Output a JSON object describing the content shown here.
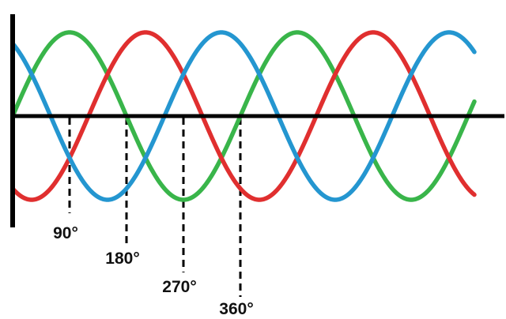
{
  "chart_data": {
    "type": "line",
    "title": "",
    "xlabel": "",
    "ylabel": "",
    "xunit": "degrees",
    "xlim": [
      -30,
      780
    ],
    "ylim": [
      -1,
      1
    ],
    "grid": false,
    "legend": "none",
    "x_tick_labels": [
      {
        "value": 90,
        "label": "90°"
      },
      {
        "value": 180,
        "label": "180°"
      },
      {
        "value": 270,
        "label": "270°"
      },
      {
        "value": 360,
        "label": "360°"
      }
    ],
    "series": [
      {
        "color": "#39b54a",
        "phase_deg": 0,
        "function": "sin",
        "amplitude": 1
      },
      {
        "color": "#e02f2f",
        "phase_deg": 120,
        "function": "sin",
        "amplitude": 1
      },
      {
        "color": "#2496d0",
        "phase_deg": 240,
        "function": "sin",
        "amplitude": 1
      }
    ]
  },
  "colors": {
    "axis": "#000000",
    "guides": "#000000"
  }
}
